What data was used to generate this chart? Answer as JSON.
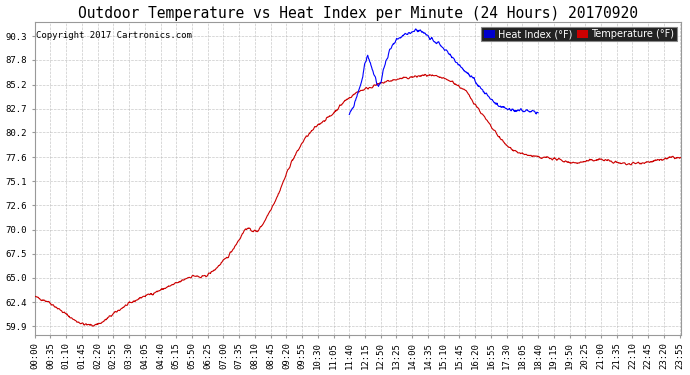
{
  "title": "Outdoor Temperature vs Heat Index per Minute (24 Hours) 20170920",
  "copyright": "Copyright 2017 Cartronics.com",
  "legend_heat": "Heat Index (°F)",
  "legend_temp": "Temperature (°F)",
  "heat_color": "#0000ff",
  "temp_color": "#cc0000",
  "background_color": "#ffffff",
  "grid_color": "#bbbbbb",
  "yticks": [
    59.9,
    62.4,
    65.0,
    67.5,
    70.0,
    72.6,
    75.1,
    77.6,
    80.2,
    82.7,
    85.2,
    87.8,
    90.3
  ],
  "ylim": [
    59.0,
    91.8
  ],
  "tick_fontsize": 6.5,
  "title_fontsize": 10.5,
  "copyright_fontsize": 6.5,
  "legend_fontsize": 7.0,
  "legend_bg_heat": "#0000cc",
  "legend_bg_temp": "#cc0000",
  "legend_text_color": "#ffffff",
  "tick_step_minutes": 35
}
